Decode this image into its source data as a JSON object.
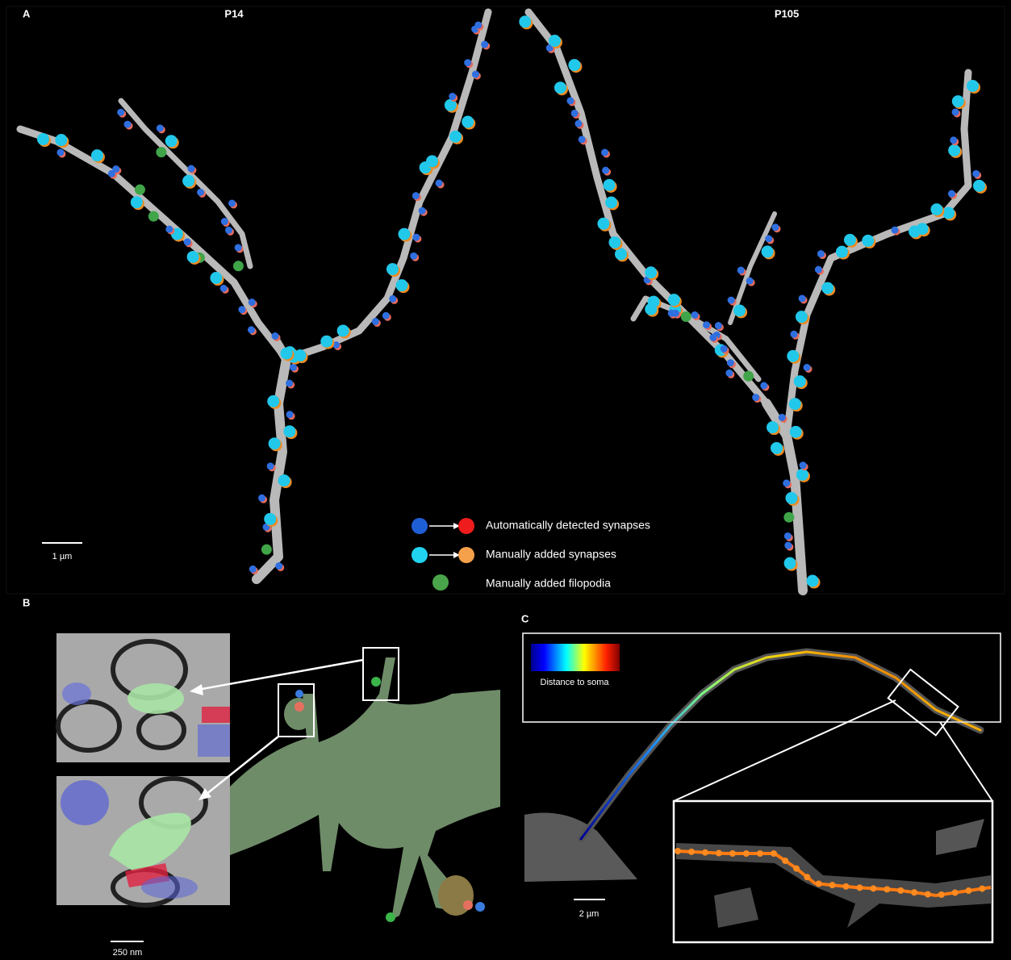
{
  "panel_a": {
    "label": "A",
    "left_title": "P14",
    "right_title": "P105",
    "scale_bar": "1 µm",
    "legend": [
      "Automatically detected synapses",
      "Manually added synapses",
      "Manually added filopodia"
    ]
  },
  "panel_b": {
    "label": "B",
    "scale_bar": "250 nm"
  },
  "panel_c": {
    "label": "C",
    "colorbar_label": "Distance to soma",
    "scale_bar": "2 µm"
  }
}
